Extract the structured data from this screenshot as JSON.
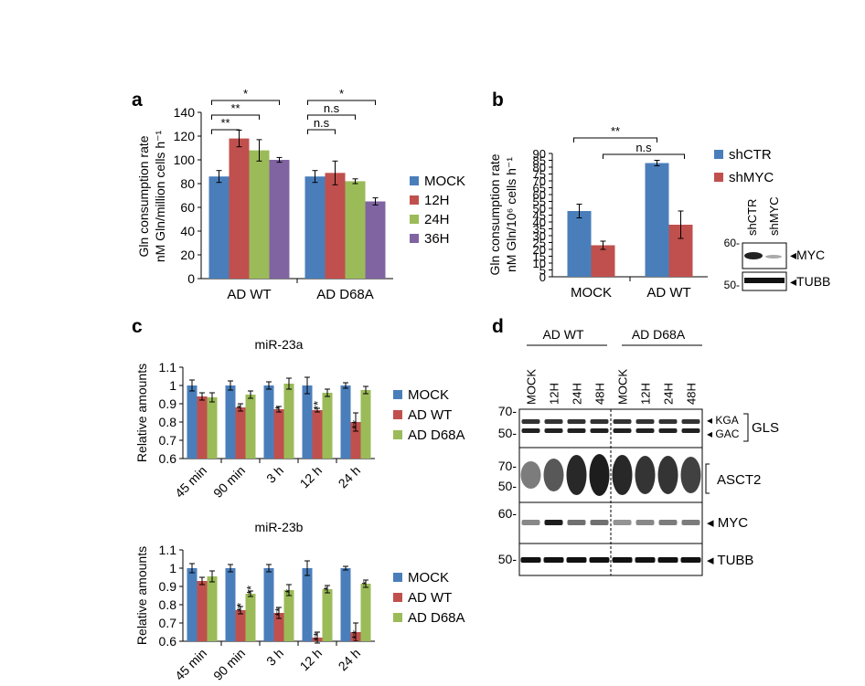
{
  "panels": {
    "a": "a",
    "b": "b",
    "c": "c",
    "d": "d"
  },
  "colors": {
    "mock": "#4a7ebb",
    "red": "#c0504d",
    "green": "#9bbb59",
    "purple": "#8064a2"
  },
  "chart_data": [
    {
      "id": "a",
      "type": "bar",
      "ylabel_lines": [
        "Gln consumption rate",
        "nM Gln/million cells h⁻¹"
      ],
      "xlabel": "",
      "ylim": [
        0,
        140
      ],
      "yticks": [
        0,
        20,
        40,
        60,
        80,
        100,
        120,
        140
      ],
      "categories": [
        "AD WT",
        "AD D68A"
      ],
      "legend_position": "right",
      "series": [
        {
          "name": "MOCK",
          "color": "#4a7ebb",
          "values": [
            86,
            86
          ],
          "errors": [
            5,
            5
          ]
        },
        {
          "name": "12H",
          "color": "#c0504d",
          "values": [
            118,
            89
          ],
          "errors": [
            7,
            10
          ]
        },
        {
          "name": "24H",
          "color": "#9bbb59",
          "values": [
            108,
            82
          ],
          "errors": [
            9,
            2
          ]
        },
        {
          "name": "36H",
          "color": "#8064a2",
          "values": [
            100,
            65
          ],
          "errors": [
            2,
            3
          ]
        }
      ],
      "annotations": [
        {
          "group": 0,
          "from": 0,
          "to": 1,
          "text": "**",
          "level": 0
        },
        {
          "group": 0,
          "from": 0,
          "to": 2,
          "text": "**",
          "level": 1
        },
        {
          "group": 0,
          "from": 0,
          "to": 3,
          "text": "*",
          "level": 2
        },
        {
          "group": 1,
          "from": 0,
          "to": 1,
          "text": "n.s",
          "level": 0
        },
        {
          "group": 1,
          "from": 0,
          "to": 2,
          "text": "n.s",
          "level": 1
        },
        {
          "group": 1,
          "from": 0,
          "to": 3,
          "text": "*",
          "level": 2
        }
      ]
    },
    {
      "id": "b",
      "type": "bar",
      "ylabel_lines": [
        "Gln consumption rate",
        "nM Gln/10⁶ cells h⁻¹"
      ],
      "xlabel": "",
      "ylim": [
        0,
        90
      ],
      "yticks": [
        0,
        5,
        10,
        15,
        20,
        25,
        30,
        35,
        40,
        45,
        50,
        55,
        60,
        65,
        70,
        75,
        80,
        85,
        90
      ],
      "ytick_labels": [
        "0",
        "5",
        "10",
        "15",
        "20",
        "25",
        "30",
        "35",
        "40",
        "45",
        "50",
        "55",
        "60",
        "65",
        "70",
        "75",
        "80",
        "85",
        "90"
      ],
      "categories": [
        "MOCK",
        "AD WT"
      ],
      "legend_position": "right",
      "series": [
        {
          "name": "shCTR",
          "color": "#4a7ebb",
          "values": [
            48,
            83
          ],
          "errors": [
            5,
            2
          ]
        },
        {
          "name": "shMYC",
          "color": "#c0504d",
          "values": [
            23,
            38
          ],
          "errors": [
            3,
            10
          ]
        }
      ],
      "annotations": [
        {
          "text": "**",
          "from": [
            0,
            0
          ],
          "to": [
            1,
            0
          ],
          "level": 1
        },
        {
          "text": "n.s",
          "from": [
            0,
            1
          ],
          "to": [
            1,
            1
          ],
          "level": 0
        }
      ]
    },
    {
      "id": "c1",
      "type": "bar",
      "title": "miR-23a",
      "ylabel": "Relative amounts",
      "ylim": [
        0.6,
        1.1
      ],
      "yticks": [
        0.6,
        0.7,
        0.8,
        0.9,
        1,
        1.1
      ],
      "categories": [
        "45 min",
        "90 min",
        "3 h",
        "12 h",
        "24 h"
      ],
      "legend_position": "right",
      "series": [
        {
          "name": "MOCK",
          "color": "#4a7ebb",
          "values": [
            1.0,
            1.0,
            1.0,
            1.0,
            1.0
          ],
          "errors": [
            0.03,
            0.025,
            0.02,
            0.045,
            0.015
          ],
          "stars": [
            "",
            "",
            "",
            "",
            ""
          ]
        },
        {
          "name": "AD WT",
          "color": "#c0504d",
          "values": [
            0.94,
            0.88,
            0.87,
            0.865,
            0.8
          ],
          "errors": [
            0.02,
            0.02,
            0.015,
            0.01,
            0.05
          ],
          "stars": [
            "",
            "*",
            "*",
            "**",
            "**"
          ]
        },
        {
          "name": "AD D68A",
          "color": "#9bbb59",
          "values": [
            0.935,
            0.95,
            1.01,
            0.96,
            0.975
          ],
          "errors": [
            0.025,
            0.02,
            0.03,
            0.02,
            0.02
          ],
          "stars": [
            "",
            "",
            "",
            "",
            ""
          ]
        }
      ]
    },
    {
      "id": "c2",
      "type": "bar",
      "title": "miR-23b",
      "ylabel": "Relative amounts",
      "ylim": [
        0.6,
        1.1
      ],
      "yticks": [
        0.6,
        0.7,
        0.8,
        0.9,
        1,
        1.1
      ],
      "categories": [
        "45 min",
        "90 min",
        "3 h",
        "12 h",
        "24 h"
      ],
      "legend_position": "right",
      "series": [
        {
          "name": "MOCK",
          "color": "#4a7ebb",
          "values": [
            1.0,
            1.0,
            1.0,
            1.0,
            1.0
          ],
          "errors": [
            0.025,
            0.02,
            0.02,
            0.04,
            0.01
          ],
          "stars": [
            "",
            "",
            "",
            "",
            ""
          ]
        },
        {
          "name": "AD WT",
          "color": "#c0504d",
          "values": [
            0.93,
            0.77,
            0.755,
            0.62,
            0.65
          ],
          "errors": [
            0.02,
            0.02,
            0.03,
            0.03,
            0.05
          ],
          "stars": [
            "",
            "**",
            "**",
            "**",
            "**"
          ]
        },
        {
          "name": "AD D68A",
          "color": "#9bbb59",
          "values": [
            0.955,
            0.86,
            0.88,
            0.885,
            0.915
          ],
          "errors": [
            0.03,
            0.015,
            0.03,
            0.02,
            0.02
          ],
          "stars": [
            "",
            "**",
            "*",
            "*",
            "*"
          ]
        }
      ]
    }
  ],
  "blot_b": {
    "lanes": [
      "shCTR",
      "shMYC"
    ],
    "bands": [
      {
        "mw": "60-",
        "label": "MYC"
      },
      {
        "mw": "50-",
        "label": "TUBB"
      }
    ]
  },
  "blot_d": {
    "groups": [
      "AD WT",
      "AD D68A"
    ],
    "lanes": [
      "MOCK",
      "12H",
      "24H",
      "48H",
      "MOCK",
      "12H",
      "24H",
      "48H"
    ],
    "gls_labels": {
      "kga": "KGA",
      "gac": "GAC",
      "gene": "GLS"
    },
    "rows": [
      {
        "mw": [
          "70-",
          "50-"
        ],
        "label": "GLS"
      },
      {
        "mw": [
          "70-",
          "50-"
        ],
        "label": "ASCT2"
      },
      {
        "mw": [
          "60-"
        ],
        "label": "MYC"
      },
      {
        "mw": [
          "50-"
        ],
        "label": "TUBB"
      }
    ]
  }
}
